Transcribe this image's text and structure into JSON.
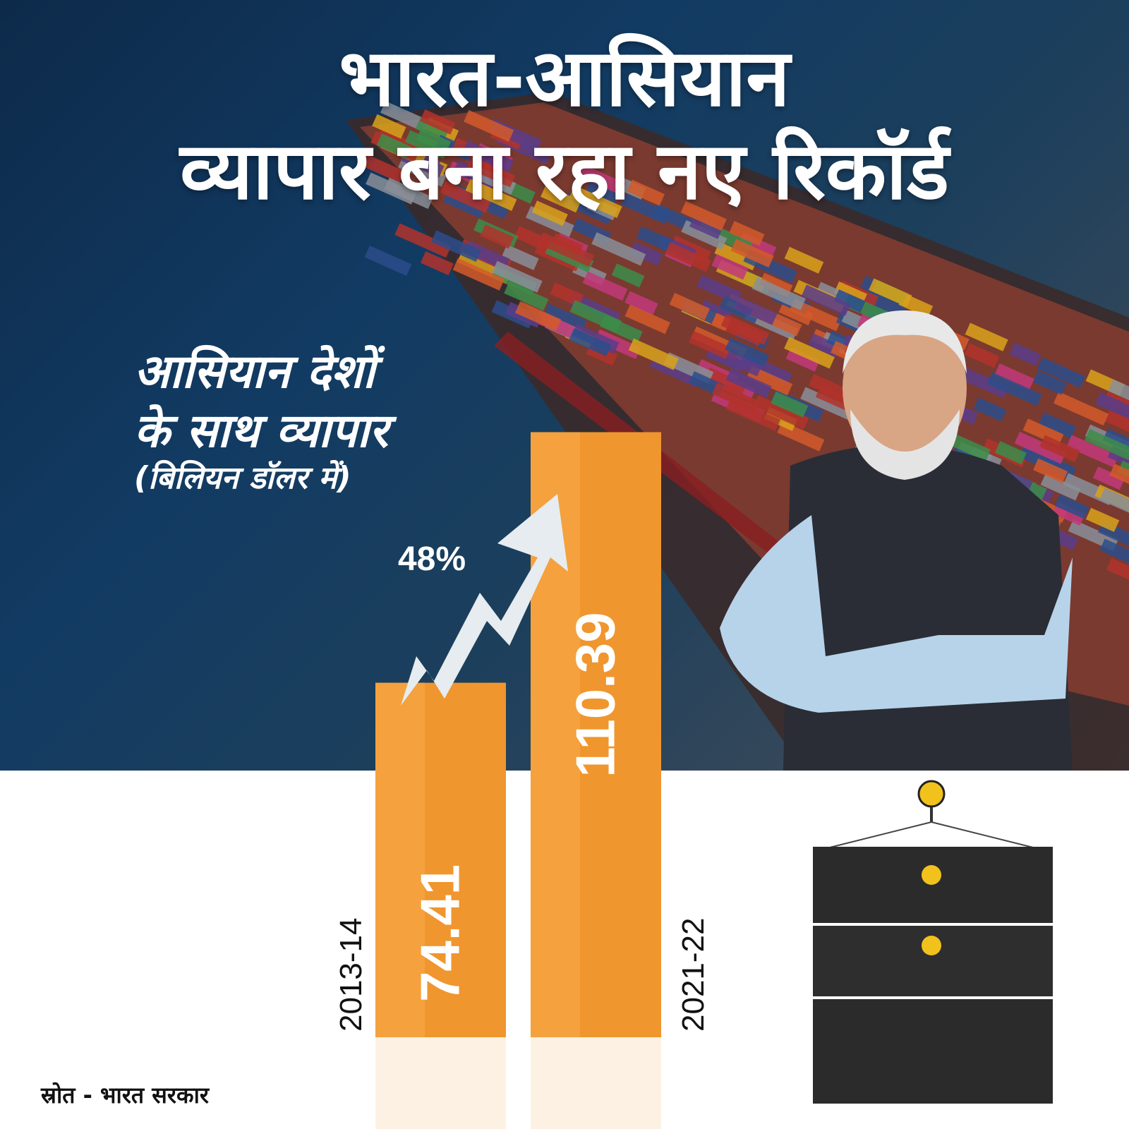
{
  "header": {
    "title_line1": "भारत-आसियान",
    "title_line2": "व्यापार बना रहा नए रिकॉर्ड"
  },
  "subtitle": {
    "line1": "आसियान देशों",
    "line2": "के साथ व्यापार",
    "unit": "(बिलियन डॉलर में)"
  },
  "chart_data": {
    "type": "bar",
    "title": "भारत-आसियान व्यापार बना रहा नए रिकॉर्ड",
    "ylabel": "आसियान देशों के साथ व्यापार (बिलियन डॉलर में)",
    "categories": [
      "2013-14",
      "2021-22"
    ],
    "values": [
      74.41,
      110.39
    ],
    "value_labels": [
      "74.41",
      "110.39"
    ],
    "annotation": "48%",
    "bar_color": "#f0962e",
    "grid": false
  },
  "footer": {
    "source": "स्रोत - भारत सरकार"
  },
  "icons": [
    "zigzag-arrow-icon",
    "cargo-ship-image",
    "person-photo",
    "hanging-containers-image"
  ]
}
